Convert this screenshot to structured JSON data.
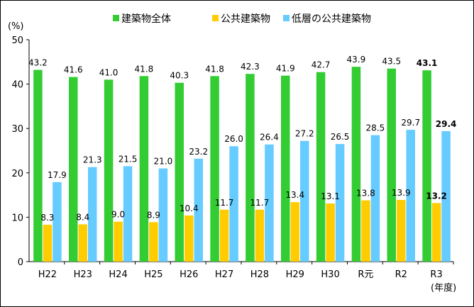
{
  "chart_data": {
    "type": "bar",
    "title": "",
    "ylabel": "(%)",
    "xlabel": "(年度)",
    "ylim": [
      0,
      50
    ],
    "yticks": [
      0,
      10,
      20,
      30,
      40,
      50
    ],
    "grid": false,
    "legend_position": "top",
    "categories": [
      "H22",
      "H23",
      "H24",
      "H25",
      "H26",
      "H27",
      "H28",
      "H29",
      "H30",
      "R元",
      "R2",
      "R3"
    ],
    "series": [
      {
        "name": "建築物全体",
        "color": "#33cc33",
        "values": [
          43.2,
          41.6,
          41.0,
          41.8,
          40.3,
          41.8,
          42.3,
          41.9,
          42.7,
          43.9,
          43.5,
          43.1
        ],
        "labels": [
          "43.2",
          "41.6",
          "41.0",
          "41.8",
          "40.3",
          "41.8",
          "42.3",
          "41.9",
          "42.7",
          "43.9",
          "43.5",
          "43.1"
        ]
      },
      {
        "name": "公共建築物",
        "color": "#ffcc00",
        "values": [
          8.3,
          8.4,
          9.0,
          8.9,
          10.4,
          11.7,
          11.7,
          13.4,
          13.1,
          13.8,
          13.9,
          13.2
        ],
        "labels": [
          "8.3",
          "8.4",
          "9.0",
          "8.9",
          "10.4",
          "11.7",
          "11.7",
          "13.4",
          "13.1",
          "13.8",
          "13.9",
          "13.2"
        ]
      },
      {
        "name": "低層の公共建築物",
        "color": "#66ccff",
        "values": [
          17.9,
          21.3,
          21.5,
          21.0,
          23.2,
          26.0,
          26.4,
          27.2,
          26.5,
          28.5,
          29.7,
          29.4
        ],
        "labels": [
          "17.9",
          "21.3",
          "21.5",
          "21.0",
          "23.2",
          "26.0",
          "26.4",
          "27.2",
          "26.5",
          "28.5",
          "29.7",
          "29.4"
        ]
      }
    ],
    "highlight_category": "R3",
    "highlight_color": "#ff0000"
  }
}
